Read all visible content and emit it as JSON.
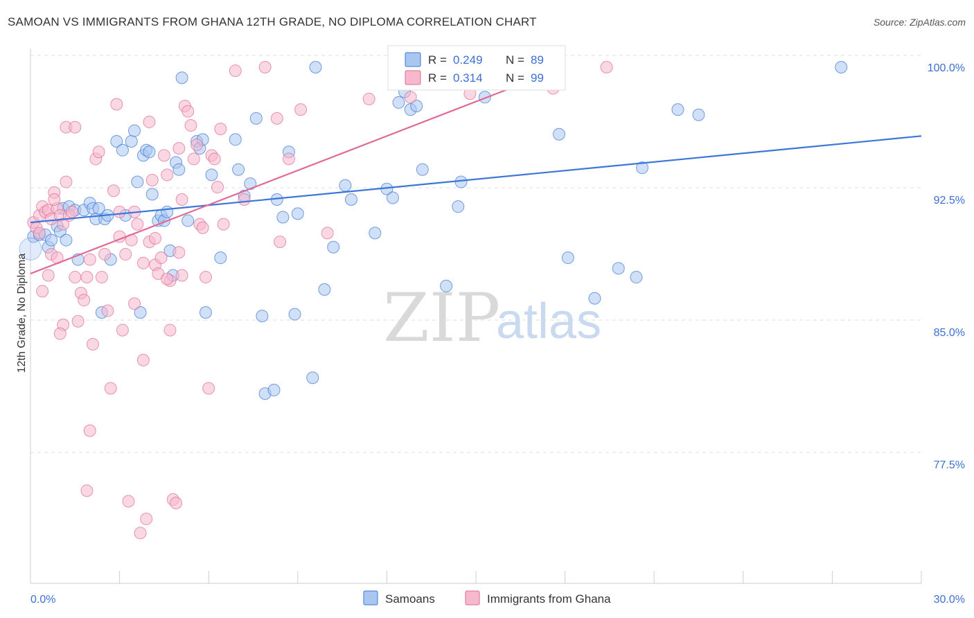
{
  "title": "SAMOAN VS IMMIGRANTS FROM GHANA 12TH GRADE, NO DIPLOMA CORRELATION CHART",
  "source": "Source: ZipAtlas.com",
  "colors": {
    "blue": "#3b76d9",
    "blue_fill": "#a9c6f1",
    "pink": "#e06a95",
    "pink_fill": "#f5b8cc",
    "grid": "#dddddd",
    "axis_label": "#3b6fd6"
  },
  "legend": {
    "r_label": "R =",
    "n_label": "N =",
    "rows": [
      {
        "series": "Samoans",
        "r": "0.249",
        "n": "89",
        "color": "#a9c6f1",
        "stroke": "#3b76d9"
      },
      {
        "series": "Immigrants from Ghana",
        "r": "0.314",
        "n": "99",
        "color": "#f5b8cc",
        "stroke": "#e06a95"
      }
    ]
  },
  "bottom_legend": [
    "Samoans",
    "Immigrants from Ghana"
  ],
  "watermark": {
    "zip": "ZIP",
    "atlas": "atlas"
  },
  "chart_data": {
    "type": "scatter",
    "title": "SAMOAN VS IMMIGRANTS FROM GHANA 12TH GRADE, NO DIPLOMA CORRELATION CHART",
    "xlabel": "",
    "ylabel": "12th Grade, No Diploma",
    "xlim": [
      0,
      30
    ],
    "ylim": [
      72,
      101
    ],
    "x_tick_labels": [
      "0.0%",
      "30.0%"
    ],
    "y_ticks": [
      77.5,
      85.0,
      92.5,
      100.0
    ],
    "y_tick_labels": [
      "77.5%",
      "85.0%",
      "92.5%",
      "100.0%"
    ],
    "grid": true,
    "legend_position": "top-center",
    "series": [
      {
        "name": "Samoans",
        "color": "#3b76d9",
        "trend": {
          "x": [
            0,
            30
          ],
          "y": [
            91.2,
            96.1
          ]
        },
        "points": [
          [
            0.1,
            90.4
          ],
          [
            0.3,
            90.5
          ],
          [
            0.5,
            90.5
          ],
          [
            0.6,
            89.8
          ],
          [
            0.7,
            90.2
          ],
          [
            0.9,
            91.0
          ],
          [
            1.0,
            90.7
          ],
          [
            1.1,
            92.0
          ],
          [
            1.3,
            92.1
          ],
          [
            1.5,
            91.9
          ],
          [
            1.2,
            90.2
          ],
          [
            1.6,
            89.1
          ],
          [
            1.8,
            91.9
          ],
          [
            2.0,
            92.3
          ],
          [
            2.1,
            92.0
          ],
          [
            2.2,
            91.4
          ],
          [
            2.3,
            92.0
          ],
          [
            2.5,
            91.4
          ],
          [
            2.6,
            91.6
          ],
          [
            2.7,
            89.1
          ],
          [
            2.4,
            86.1
          ],
          [
            2.9,
            95.8
          ],
          [
            3.1,
            95.3
          ],
          [
            3.2,
            91.6
          ],
          [
            3.4,
            95.8
          ],
          [
            3.5,
            96.4
          ],
          [
            3.6,
            93.5
          ],
          [
            3.8,
            95.0
          ],
          [
            3.9,
            95.3
          ],
          [
            3.7,
            86.1
          ],
          [
            4.0,
            95.2
          ],
          [
            4.1,
            92.8
          ],
          [
            4.3,
            91.3
          ],
          [
            4.4,
            91.6
          ],
          [
            4.5,
            91.3
          ],
          [
            4.6,
            91.8
          ],
          [
            4.7,
            89.6
          ],
          [
            4.8,
            88.2
          ],
          [
            4.9,
            94.6
          ],
          [
            5.0,
            94.2
          ],
          [
            5.1,
            99.4
          ],
          [
            5.3,
            91.3
          ],
          [
            5.6,
            95.8
          ],
          [
            5.7,
            95.4
          ],
          [
            5.8,
            95.9
          ],
          [
            5.9,
            86.1
          ],
          [
            6.1,
            93.9
          ],
          [
            6.4,
            89.2
          ],
          [
            6.9,
            95.9
          ],
          [
            7.0,
            94.2
          ],
          [
            7.2,
            92.7
          ],
          [
            7.4,
            93.4
          ],
          [
            7.6,
            97.1
          ],
          [
            7.8,
            85.9
          ],
          [
            7.9,
            81.5
          ],
          [
            8.2,
            81.7
          ],
          [
            8.3,
            92.5
          ],
          [
            8.5,
            91.5
          ],
          [
            8.7,
            95.2
          ],
          [
            8.9,
            86.0
          ],
          [
            9.0,
            91.7
          ],
          [
            9.5,
            82.4
          ],
          [
            9.6,
            100.0
          ],
          [
            9.9,
            87.4
          ],
          [
            10.2,
            89.8
          ],
          [
            10.6,
            93.3
          ],
          [
            10.8,
            92.5
          ],
          [
            11.6,
            90.6
          ],
          [
            12.0,
            93.1
          ],
          [
            12.2,
            92.6
          ],
          [
            12.4,
            98.0
          ],
          [
            12.6,
            98.6
          ],
          [
            12.8,
            97.6
          ],
          [
            13.0,
            97.8
          ],
          [
            13.2,
            94.2
          ],
          [
            14.0,
            87.6
          ],
          [
            14.4,
            92.1
          ],
          [
            14.5,
            93.5
          ],
          [
            15.3,
            98.3
          ],
          [
            16.0,
            99.7
          ],
          [
            17.8,
            96.2
          ],
          [
            18.1,
            89.2
          ],
          [
            19.0,
            86.9
          ],
          [
            19.8,
            88.6
          ],
          [
            20.4,
            88.1
          ],
          [
            20.6,
            94.3
          ],
          [
            21.8,
            97.6
          ],
          [
            22.5,
            97.3
          ],
          [
            27.3,
            100.0
          ]
        ]
      },
      {
        "name": "Immigrants from Ghana",
        "color": "#e06a95",
        "trend": {
          "x": [
            0,
            18
          ],
          "y": [
            88.3,
            100.0
          ]
        },
        "points": [
          [
            0.1,
            91.2
          ],
          [
            0.2,
            90.9
          ],
          [
            0.3,
            91.6
          ],
          [
            0.4,
            92.1
          ],
          [
            0.5,
            91.8
          ],
          [
            0.6,
            91.9
          ],
          [
            0.7,
            91.4
          ],
          [
            0.8,
            92.9
          ],
          [
            0.9,
            92.0
          ],
          [
            1.0,
            91.6
          ],
          [
            0.3,
            90.6
          ],
          [
            0.4,
            87.3
          ],
          [
            0.6,
            88.2
          ],
          [
            0.7,
            89.4
          ],
          [
            0.8,
            92.5
          ],
          [
            1.1,
            91.1
          ],
          [
            1.2,
            93.5
          ],
          [
            1.3,
            91.6
          ],
          [
            1.4,
            91.8
          ],
          [
            1.1,
            85.4
          ],
          [
            1.0,
            84.9
          ],
          [
            1.2,
            96.6
          ],
          [
            1.5,
            96.6
          ],
          [
            1.7,
            87.2
          ],
          [
            1.8,
            86.8
          ],
          [
            1.9,
            88.1
          ],
          [
            2.0,
            89.1
          ],
          [
            1.6,
            85.6
          ],
          [
            2.1,
            84.3
          ],
          [
            2.2,
            94.8
          ],
          [
            2.3,
            95.2
          ],
          [
            2.5,
            89.4
          ],
          [
            2.6,
            86.2
          ],
          [
            2.0,
            79.4
          ],
          [
            2.7,
            81.8
          ],
          [
            1.9,
            76.0
          ],
          [
            2.8,
            93.0
          ],
          [
            2.9,
            97.9
          ],
          [
            3.0,
            90.4
          ],
          [
            3.1,
            85.1
          ],
          [
            3.2,
            89.4
          ],
          [
            3.4,
            90.2
          ],
          [
            3.5,
            91.8
          ],
          [
            3.6,
            91.1
          ],
          [
            3.3,
            75.4
          ],
          [
            3.7,
            73.6
          ],
          [
            3.8,
            83.4
          ],
          [
            3.9,
            74.4
          ],
          [
            4.0,
            96.9
          ],
          [
            4.1,
            93.6
          ],
          [
            4.2,
            88.8
          ],
          [
            4.3,
            88.3
          ],
          [
            4.4,
            89.2
          ],
          [
            4.5,
            95.0
          ],
          [
            4.6,
            93.9
          ],
          [
            4.7,
            85.1
          ],
          [
            4.8,
            75.5
          ],
          [
            4.9,
            75.3
          ],
          [
            5.0,
            89.5
          ],
          [
            5.1,
            92.5
          ],
          [
            5.2,
            97.8
          ],
          [
            5.3,
            97.5
          ],
          [
            5.4,
            96.7
          ],
          [
            5.5,
            94.8
          ],
          [
            5.6,
            95.6
          ],
          [
            5.7,
            91.1
          ],
          [
            5.8,
            90.9
          ],
          [
            5.9,
            88.1
          ],
          [
            6.0,
            81.8
          ],
          [
            6.1,
            95.0
          ],
          [
            6.2,
            94.8
          ],
          [
            6.3,
            93.2
          ],
          [
            6.4,
            96.5
          ],
          [
            6.5,
            91.1
          ],
          [
            5.0,
            95.4
          ],
          [
            5.1,
            88.2
          ],
          [
            4.7,
            87.9
          ],
          [
            4.6,
            88.0
          ],
          [
            4.0,
            90.1
          ],
          [
            3.0,
            91.8
          ],
          [
            3.8,
            88.9
          ],
          [
            4.2,
            90.3
          ],
          [
            6.9,
            99.8
          ],
          [
            7.2,
            92.5
          ],
          [
            7.9,
            100.0
          ],
          [
            8.3,
            97.1
          ],
          [
            8.4,
            90.1
          ],
          [
            8.7,
            94.8
          ],
          [
            9.1,
            97.6
          ],
          [
            10.0,
            90.6
          ],
          [
            11.4,
            98.2
          ],
          [
            12.8,
            98.3
          ],
          [
            14.8,
            98.5
          ],
          [
            17.6,
            98.8
          ],
          [
            19.4,
            100.0
          ],
          [
            3.5,
            86.6
          ],
          [
            2.4,
            88.1
          ],
          [
            1.5,
            88.1
          ],
          [
            0.9,
            89.2
          ]
        ]
      }
    ]
  }
}
